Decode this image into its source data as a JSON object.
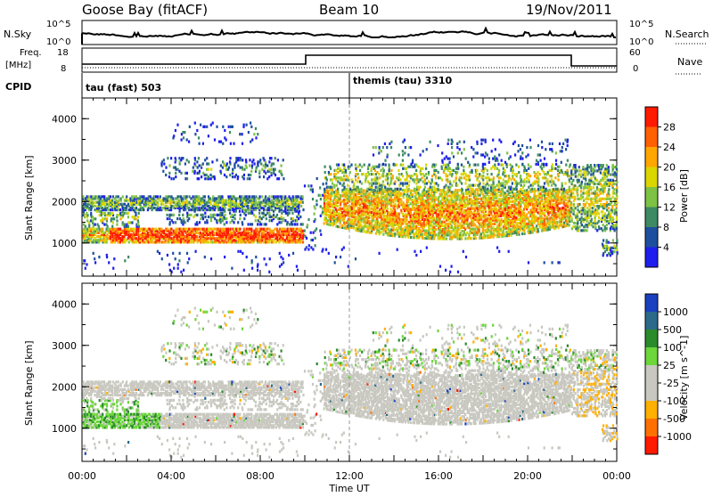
{
  "header": {
    "station": "Goose Bay (fitACF)",
    "beam": "Beam 10",
    "date": "19/Nov/2011"
  },
  "noise_panel": {
    "left_label": "N.Sky",
    "right_label": "N.Search",
    "left_ticks": [
      "10^5",
      "10^0"
    ],
    "right_ticks": [
      "10^5",
      "10^0"
    ]
  },
  "freq_panel": {
    "left_label_1": "Freq.",
    "left_label_2": "[MHz]",
    "right_label": "Nave",
    "left_ticks": [
      "18",
      "8"
    ],
    "right_ticks": [
      "60",
      "0"
    ]
  },
  "cpid": {
    "label": "CPID",
    "modes": [
      {
        "name": "tau (fast) 503",
        "start_ut": 0
      },
      {
        "name": "themis (tau) 3310",
        "start_ut": 12
      }
    ]
  },
  "chart_data": [
    {
      "type": "heatmap",
      "title": "Power",
      "ylabel": "Slant Range [km]",
      "xlabel": "",
      "colorbar_label": "Power [dB]",
      "colorbar_ticks": [
        "28",
        "24",
        "20",
        "16",
        "12",
        "8",
        "4"
      ],
      "colorbar_colors": [
        "#ff1a00",
        "#ff6000",
        "#ffa600",
        "#d9d600",
        "#7ec244",
        "#3d8a63",
        "#1e4f9e",
        "#1e1eee"
      ],
      "x_ticks": [
        "00:00",
        "04:00",
        "08:00",
        "12:00",
        "16:00",
        "20:00",
        "00:00"
      ],
      "y_ticks": [
        "1000",
        "2000",
        "3000",
        "4000"
      ],
      "xlim_ut": [
        0,
        24
      ],
      "ylim_km": [
        200,
        4500
      ]
    },
    {
      "type": "heatmap",
      "title": "Velocity",
      "ylabel": "Slant Range [km]",
      "xlabel": "Time UT",
      "colorbar_label": "Velocity [m s^-1]",
      "colorbar_ticks": [
        "1000",
        "500",
        "100",
        "25",
        "-25",
        "-100",
        "-500",
        "-1000"
      ],
      "colorbar_colors": [
        "#1a40c0",
        "#2c6a8a",
        "#2a8b2a",
        "#6cd63a",
        "#c8c8c0",
        "#c8c8c0",
        "#ffb000",
        "#ff7000",
        "#ff1a00"
      ],
      "x_ticks": [
        "00:00",
        "04:00",
        "08:00",
        "12:00",
        "16:00",
        "20:00",
        "00:00"
      ],
      "y_ticks": [
        "1000",
        "2000",
        "3000",
        "4000"
      ],
      "xlim_ut": [
        0,
        24
      ],
      "ylim_km": [
        200,
        4500
      ]
    }
  ]
}
